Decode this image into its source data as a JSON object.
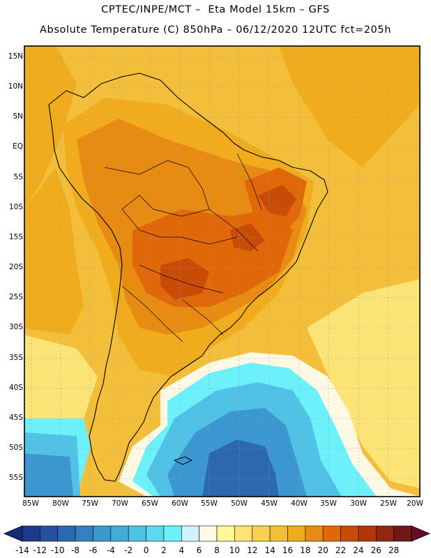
{
  "title": {
    "line1": "CPTEC/INPE/MCT –  Eta Model 15km – GFS",
    "line2": "Absolute Temperature (C) 850hPa – 06/12/2020 12UTC fct=205h"
  },
  "map": {
    "variable": "Absolute Temperature (C) 850hPa",
    "region": "South America",
    "lat_range": [
      -58,
      17
    ],
    "lon_range": [
      -86,
      -20
    ],
    "lat_labels": [
      "15N",
      "10N",
      "5N",
      "EQ",
      "5S",
      "10S",
      "15S",
      "20S",
      "25S",
      "30S",
      "35S",
      "40S",
      "45S",
      "50S",
      "55S"
    ],
    "lon_labels": [
      "85W",
      "80W",
      "75W",
      "70W",
      "65W",
      "60W",
      "55W",
      "50W",
      "45W",
      "40W",
      "35W",
      "30W",
      "25W",
      "20W"
    ]
  },
  "colorbar": {
    "ticks": [
      "-14",
      "-12",
      "-10",
      "-8",
      "-6",
      "-4",
      "-2",
      "0",
      "2",
      "4",
      "6",
      "8",
      "10",
      "12",
      "14",
      "16",
      "18",
      "20",
      "22",
      "24",
      "26",
      "28"
    ],
    "colors": [
      "#1c3b8c",
      "#2452a0",
      "#2c68b0",
      "#3480c0",
      "#3c96cf",
      "#44aad8",
      "#50c2e6",
      "#5ed8f0",
      "#6cf0fa",
      "#d0f2fc",
      "#fff8e4",
      "#fff79a",
      "#fce476",
      "#f8d054",
      "#f3bf3a",
      "#f0ac1c",
      "#e88b12",
      "#e06808",
      "#c84c08",
      "#b03808",
      "#902810",
      "#701818"
    ],
    "under_color": "#142a7a",
    "over_color": "#6a0c24"
  }
}
